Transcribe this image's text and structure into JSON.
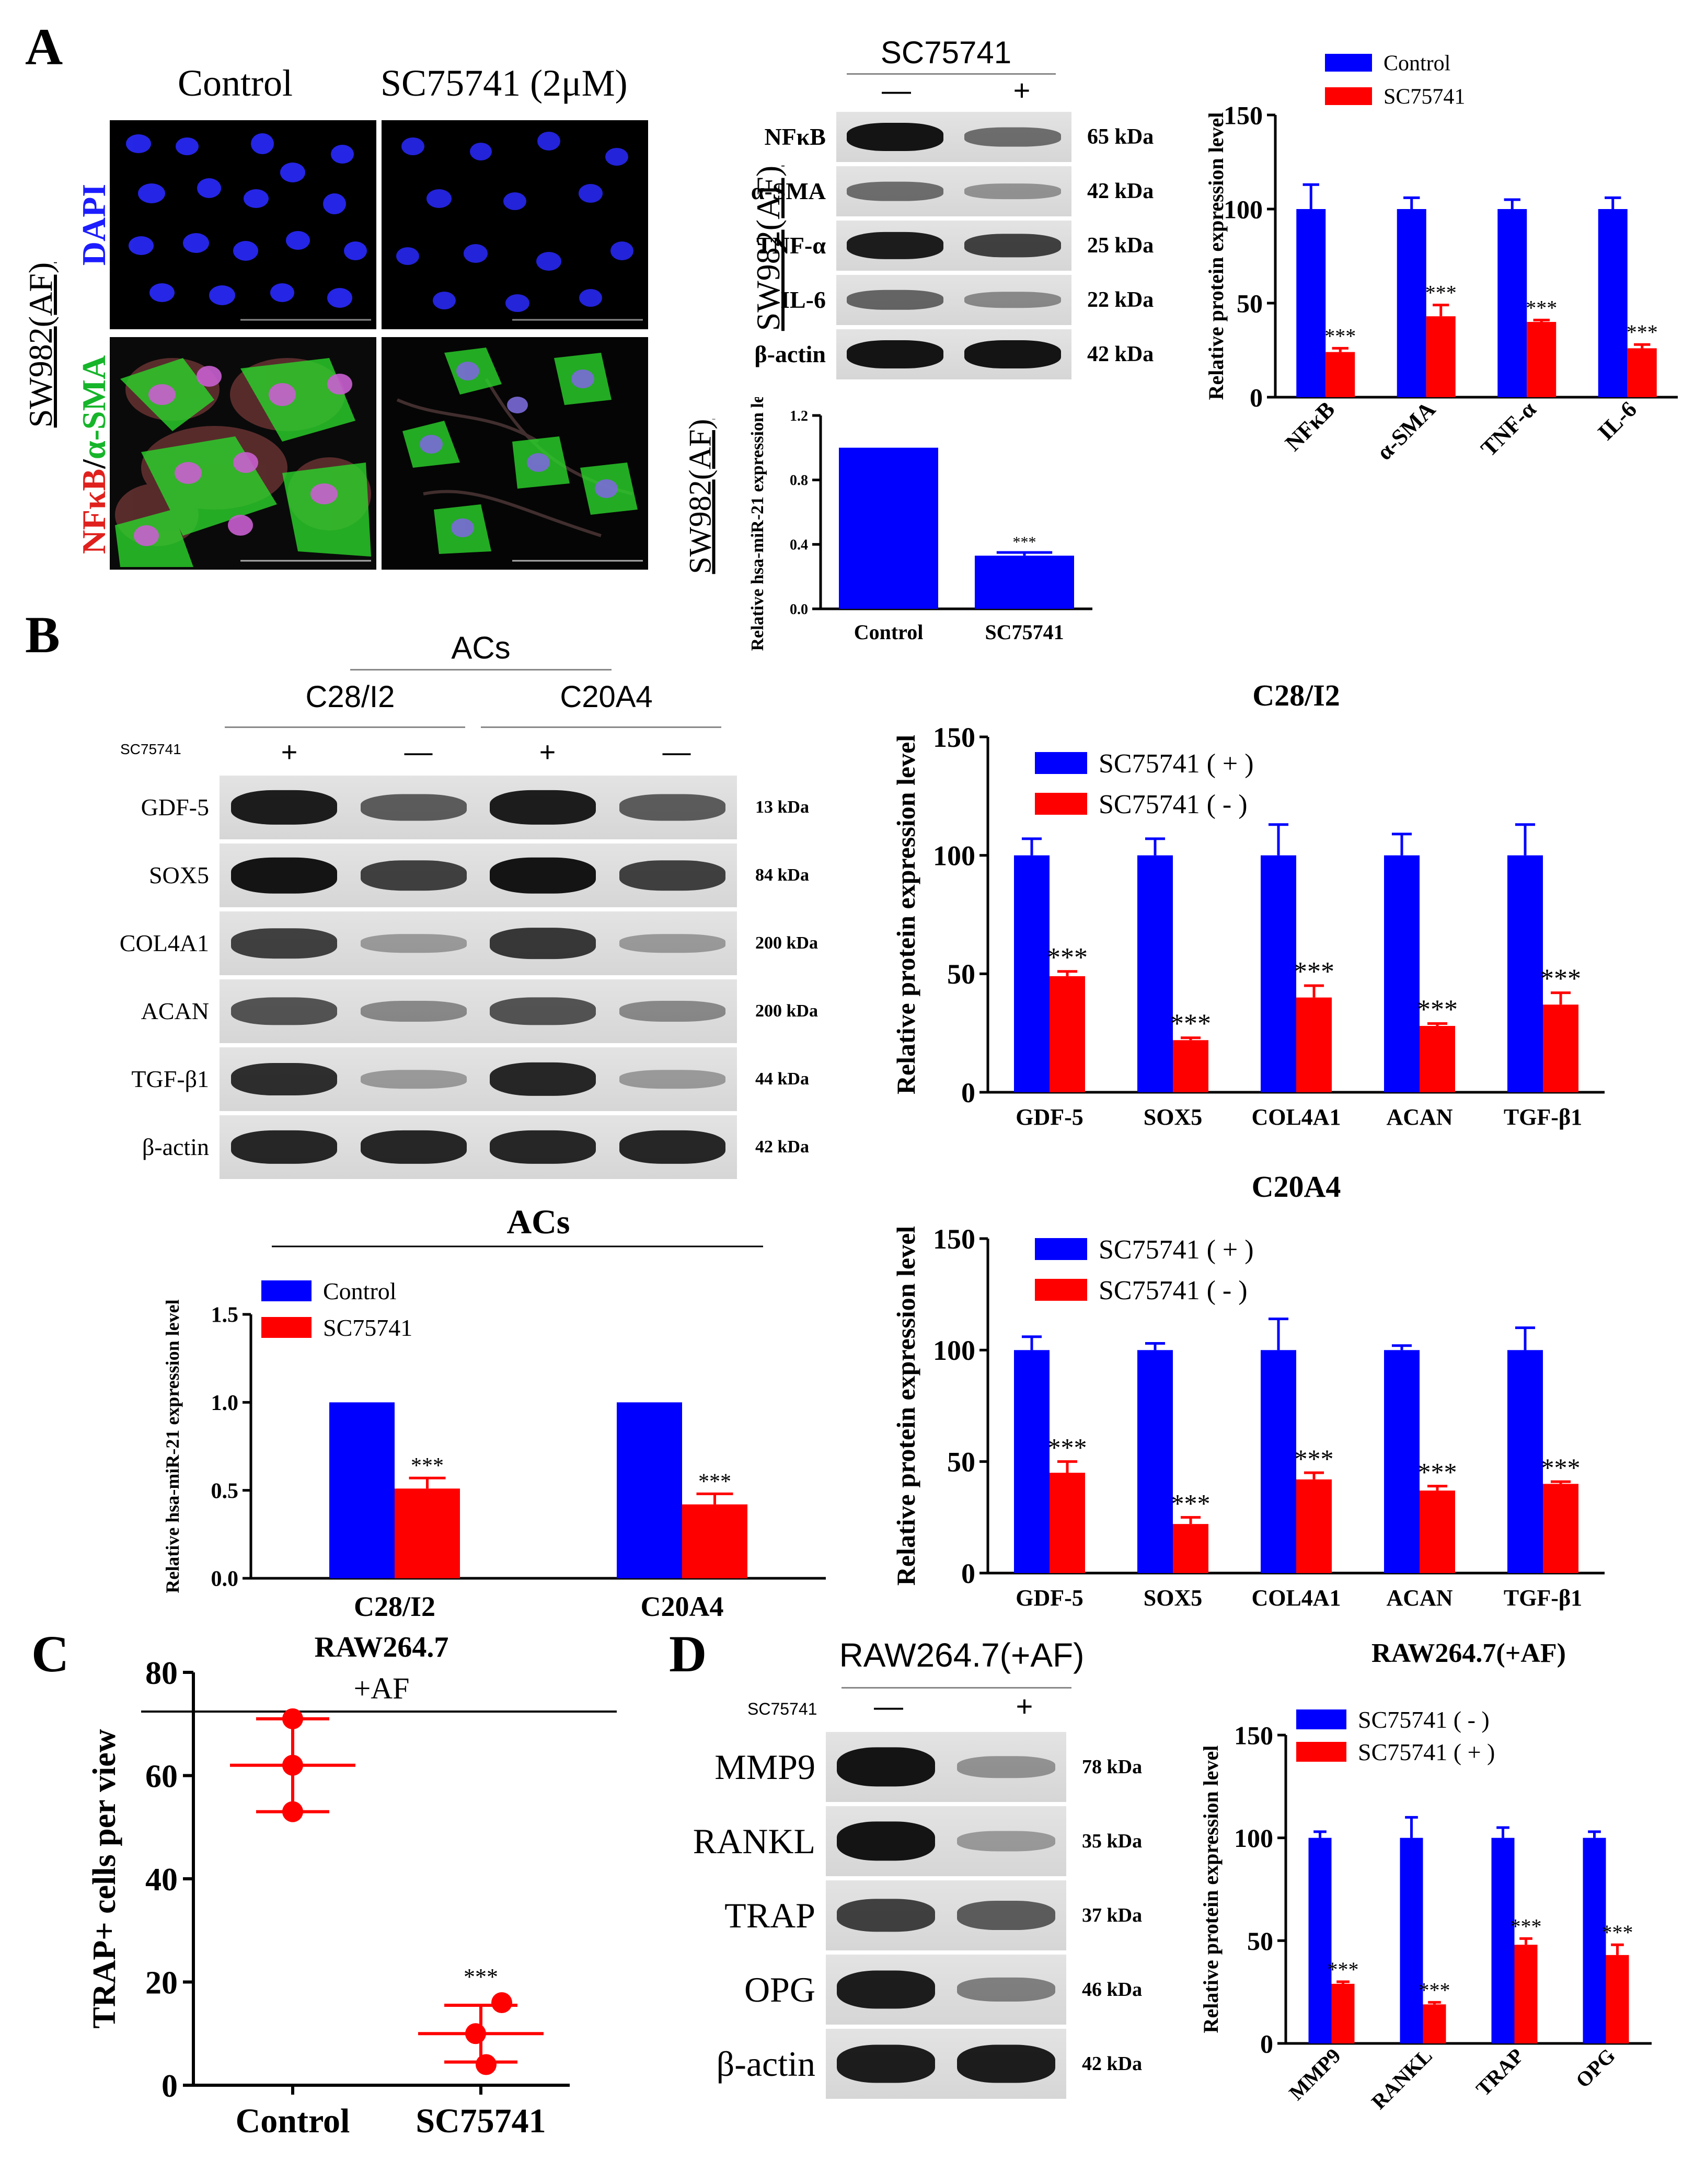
{
  "panels": {
    "A": "A",
    "B": "B",
    "C": "C",
    "D": "D"
  },
  "panelA": {
    "col_control": "Control",
    "col_treat": "SC75741 (2μM)",
    "cell_line": "SW982(AF)",
    "row_dapi": "DAPI",
    "row_merge_a": "NFκB",
    "row_merge_sep": "/",
    "row_merge_b": "α-SMA",
    "wb_treatment": "SC75741",
    "wb_minus": "—",
    "wb_plus": "+",
    "wb_cell_line": "SW982(AF)",
    "wb_rows": [
      {
        "label": "NFκB",
        "kda": "65 kDa",
        "lanes": [
          0.95,
          0.45
        ]
      },
      {
        "label": "α-SMA",
        "kda": "42 kDa",
        "lanes": [
          0.45,
          0.25
        ]
      },
      {
        "label": "TNF-α",
        "kda": "25 kDa",
        "lanes": [
          0.9,
          0.7
        ]
      },
      {
        "label": "IL-6",
        "kda": "22 kDa",
        "lanes": [
          0.5,
          0.3
        ]
      },
      {
        "label": "β-actin",
        "kda": "42 kDa",
        "lanes": [
          0.95,
          0.95
        ]
      }
    ],
    "mir_cell_line": "SW982(AF)",
    "mir_ylabel": "Relative hsa-miR-21 expression level",
    "sig": "***"
  },
  "panelB": {
    "acs": "ACs",
    "line1": "C28/I2",
    "line2": "C20A4",
    "treatment": "SC75741",
    "lane_signs": [
      "+",
      "—",
      "+",
      "—"
    ],
    "wb_rows": [
      {
        "label": "GDF-5",
        "kda": "13 kDa",
        "lanes": [
          0.9,
          0.55,
          0.9,
          0.55
        ]
      },
      {
        "label": "SOX5",
        "kda": "84 kDa",
        "lanes": [
          0.95,
          0.7,
          0.95,
          0.7
        ]
      },
      {
        "label": "COL4A1",
        "kda": "200 kDa",
        "lanes": [
          0.7,
          0.2,
          0.75,
          0.2
        ]
      },
      {
        "label": "ACAN",
        "kda": "200 kDa",
        "lanes": [
          0.6,
          0.3,
          0.6,
          0.3
        ]
      },
      {
        "label": "TGF-β1",
        "kda": "44 kDa",
        "lanes": [
          0.8,
          0.2,
          0.85,
          0.2
        ]
      },
      {
        "label": "β-actin",
        "kda": "42 kDa",
        "lanes": [
          0.85,
          0.85,
          0.85,
          0.85
        ]
      }
    ],
    "mir_header": "ACs",
    "mir_ylabel": "Relative hsa-miR-21 expression level"
  },
  "panelC": {
    "title": "RAW264.7",
    "subtitle": "+AF",
    "ylabel": "TRAP+ cells per view",
    "sig": "***"
  },
  "panelD": {
    "header": "RAW264.7(+AF)",
    "treatment": "SC75741",
    "minus": "—",
    "plus": "+",
    "wb_rows": [
      {
        "label": "MMP9",
        "kda": "78 kDa",
        "lanes": [
          0.95,
          0.25
        ]
      },
      {
        "label": "RANKL",
        "kda": "35 kDa",
        "lanes": [
          0.95,
          0.2
        ]
      },
      {
        "label": "TRAP",
        "kda": "37 kDa",
        "lanes": [
          0.7,
          0.55
        ]
      },
      {
        "label": "OPG",
        "kda": "46 kDa",
        "lanes": [
          0.9,
          0.35
        ]
      },
      {
        "label": "β-actin",
        "kda": "42 kDa",
        "lanes": [
          0.9,
          0.9
        ]
      }
    ]
  },
  "colors": {
    "control": "#0000ff",
    "treated": "#ff0000",
    "blue_text": "#1c1cff",
    "green_text": "#16b52a",
    "red_text": "#e0201c"
  },
  "chart_data": [
    {
      "id": "A_protein",
      "type": "bar",
      "title": "",
      "ylabel": "Relative protein expression level",
      "ylim": [
        0,
        150
      ],
      "yticks": [
        0,
        50,
        100,
        150
      ],
      "categories": [
        "NFκB",
        "α-SMA",
        "TNF-α",
        "IL-6"
      ],
      "series": [
        {
          "name": "Control",
          "color": "#0000ff",
          "values": [
            100,
            100,
            100,
            100
          ],
          "err": [
            13,
            6,
            5,
            6
          ]
        },
        {
          "name": "SC75741",
          "color": "#ff0000",
          "values": [
            24,
            43,
            40,
            26
          ],
          "err": [
            2,
            6,
            1,
            2
          ],
          "sig": "***"
        }
      ],
      "legend": "top"
    },
    {
      "id": "A_mir",
      "type": "bar",
      "ylabel": "Relative hsa-miR-21 expression level",
      "ylim": [
        0,
        1.2
      ],
      "yticks": [
        "0.0",
        "0.4",
        "0.8",
        "1.2"
      ],
      "categories": [
        "Control",
        "SC75741"
      ],
      "values": [
        1.0,
        0.33
      ],
      "err": [
        0,
        0.02
      ],
      "colors": [
        "#0000ff",
        "#0000ff"
      ],
      "sig": [
        "",
        "***"
      ]
    },
    {
      "id": "B_C28",
      "type": "bar",
      "title": "C28/I2",
      "ylabel": "Relative protein expression level",
      "ylim": [
        0,
        150
      ],
      "yticks": [
        0,
        50,
        100,
        150
      ],
      "categories": [
        "GDF-5",
        "SOX5",
        "COL4A1",
        "ACAN",
        "TGF-β1"
      ],
      "series": [
        {
          "name": "SC75741 ( + )",
          "color": "#0000ff",
          "values": [
            100,
            100,
            100,
            100,
            100
          ],
          "err": [
            7,
            7,
            13,
            9,
            13
          ]
        },
        {
          "name": "SC75741 ( - )",
          "color": "#ff0000",
          "values": [
            49,
            22,
            40,
            28,
            37
          ],
          "err": [
            2,
            1,
            5,
            1,
            5
          ],
          "sig": "***"
        }
      ],
      "legend": "top-left"
    },
    {
      "id": "B_C20",
      "type": "bar",
      "title": "C20A4",
      "ylabel": "Relative protein expression level",
      "ylim": [
        0,
        150
      ],
      "yticks": [
        0,
        50,
        100,
        150
      ],
      "categories": [
        "GDF-5",
        "SOX5",
        "COL4A1",
        "ACAN",
        "TGF-β1"
      ],
      "series": [
        {
          "name": "SC75741 ( + )",
          "color": "#0000ff",
          "values": [
            100,
            100,
            100,
            100,
            100
          ],
          "err": [
            6,
            3,
            14,
            2,
            10
          ]
        },
        {
          "name": "SC75741 ( - )",
          "color": "#ff0000",
          "values": [
            45,
            22,
            42,
            37,
            40
          ],
          "err": [
            5,
            3,
            3,
            2,
            1
          ],
          "sig": "***"
        }
      ],
      "legend": "top-left"
    },
    {
      "id": "B_mir",
      "type": "bar",
      "title": "ACs",
      "ylabel": "Relative hsa-miR-21 expression level",
      "ylim": [
        0,
        1.5
      ],
      "yticks": [
        "0.0",
        "0.5",
        "1.0",
        "1.5"
      ],
      "categories": [
        "C28/I2",
        "C20A4"
      ],
      "series": [
        {
          "name": "Control",
          "color": "#0000ff",
          "values": [
            1.0,
            1.0
          ],
          "err": [
            0,
            0
          ]
        },
        {
          "name": "SC75741",
          "color": "#ff0000",
          "values": [
            0.51,
            0.42
          ],
          "err": [
            0.06,
            0.06
          ],
          "sig": "***"
        }
      ],
      "legend": "top-left"
    },
    {
      "id": "C_scatter",
      "type": "scatter",
      "title": "RAW264.7",
      "ylabel": "TRAP+ cells per view",
      "ylim": [
        0,
        80
      ],
      "yticks": [
        0,
        20,
        40,
        60,
        80
      ],
      "categories": [
        "Control",
        "SC75741"
      ],
      "points": [
        [
          71,
          62,
          53
        ],
        [
          16,
          10,
          4
        ]
      ],
      "mean": [
        62,
        10
      ],
      "sd": [
        9,
        5.5
      ],
      "color": "#ff0000",
      "sig": [
        "",
        "***"
      ]
    },
    {
      "id": "D_protein",
      "type": "bar",
      "title": "RAW264.7(+AF)",
      "ylabel": "Relative protein expression level",
      "ylim": [
        0,
        150
      ],
      "yticks": [
        0,
        50,
        100,
        150
      ],
      "categories": [
        "MMP9",
        "RANKL",
        "TRAP",
        "OPG"
      ],
      "series": [
        {
          "name": "SC75741 ( - )",
          "color": "#0000ff",
          "values": [
            100,
            100,
            100,
            100
          ],
          "err": [
            3,
            10,
            5,
            3
          ]
        },
        {
          "name": "SC75741 ( + )",
          "color": "#ff0000",
          "values": [
            29,
            19,
            48,
            43
          ],
          "err": [
            1,
            1,
            3,
            5
          ],
          "sig": "***"
        }
      ],
      "legend": "top-left"
    }
  ]
}
